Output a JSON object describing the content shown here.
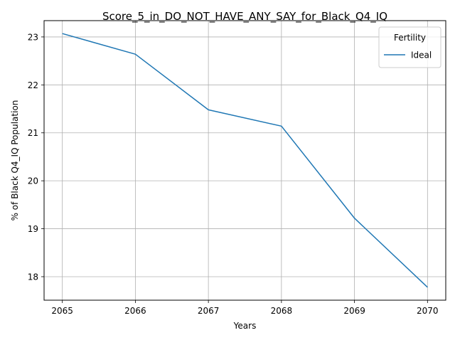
{
  "chart_data": {
    "type": "line",
    "title": "Score_5_in_DO_NOT_HAVE_ANY_SAY_for_Black_Q4_IQ",
    "xlabel": "Years",
    "ylabel": "% of Black Q4_IQ Population",
    "x": [
      2065,
      2066,
      2067,
      2068,
      2069,
      2070
    ],
    "xlim": [
      2064.75,
      2070.25
    ],
    "ylim": [
      17.51,
      23.34
    ],
    "xticks": [
      "2065",
      "2066",
      "2067",
      "2068",
      "2069",
      "2070"
    ],
    "yticks": [
      "18",
      "19",
      "20",
      "21",
      "22",
      "23"
    ],
    "grid": true,
    "legend": {
      "title": "Fertility",
      "position": "top-right"
    },
    "series": [
      {
        "name": "Ideal",
        "color": "#1f77b4",
        "values": [
          23.07,
          22.64,
          21.48,
          21.14,
          19.22,
          17.78
        ]
      }
    ]
  }
}
